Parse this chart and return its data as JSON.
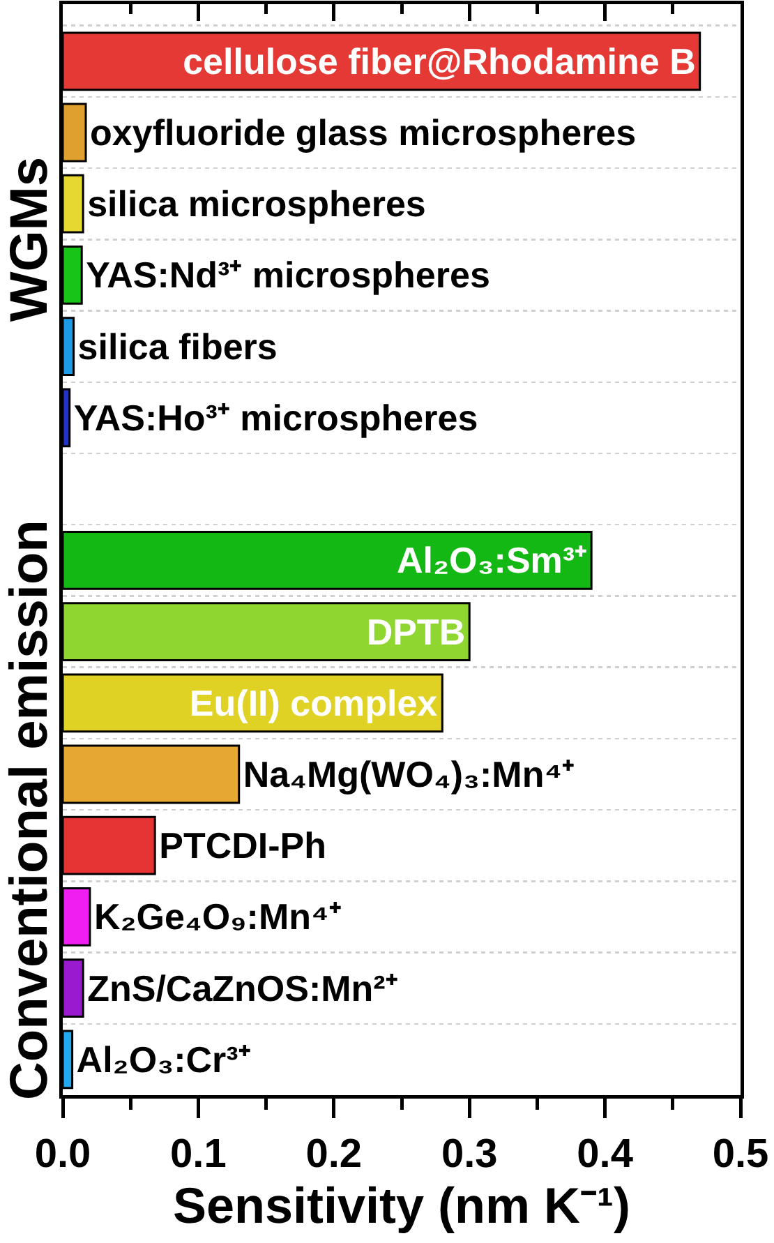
{
  "chart_data": {
    "type": "bar",
    "orientation": "horizontal",
    "categories": [
      "cellulose fiber@Rhodamine B",
      "oxyfluoride glass microspheres",
      "silica microspheres",
      "YAS:Nd³⁺ microspheres",
      "silica fibers",
      "YAS:Ho³⁺ microspheres",
      null,
      "Al₂O₃:Sm³⁺",
      "DPTB",
      "Eu(II) complex",
      "Na₄Mg(WO₄)₃:Mn⁴⁺",
      "PTCDI-Ph",
      "K₂Ge₄O₉:Mn⁴⁺",
      "ZnS/CaZnOS:Mn²⁺",
      "Al₂O₃:Cr³⁺"
    ],
    "values": [
      0.47,
      0.017,
      0.015,
      0.014,
      0.008,
      0.005,
      null,
      0.39,
      0.3,
      0.28,
      0.13,
      0.068,
      0.02,
      0.015,
      0.007
    ],
    "colors": [
      "#e53935",
      "#e0a030",
      "#e6d830",
      "#19c419",
      "#1e9be6",
      "#2233cc",
      null,
      "#14b814",
      "#8fd630",
      "#e0d225",
      "#e6a832",
      "#e63333",
      "#f01ef0",
      "#9a1ad0",
      "#22aaf0"
    ],
    "xlabel": "Sensitivity (nm K⁻¹)",
    "xlim": [
      0,
      0.5
    ],
    "xticks": [
      {
        "value": 0,
        "label": "0.0"
      },
      {
        "value": 0.05,
        "label": null
      },
      0.1,
      {
        "value": 0.15,
        "label": null
      },
      0.2,
      {
        "value": 0.25,
        "label": null
      },
      0.3,
      {
        "value": 0.35,
        "label": null
      },
      0.4,
      {
        "value": 0.45,
        "label": null
      },
      0.5
    ],
    "annotations": [
      "WGMs",
      "Conventional emission"
    ],
    "grid": "y",
    "tick_labels": "x"
  }
}
